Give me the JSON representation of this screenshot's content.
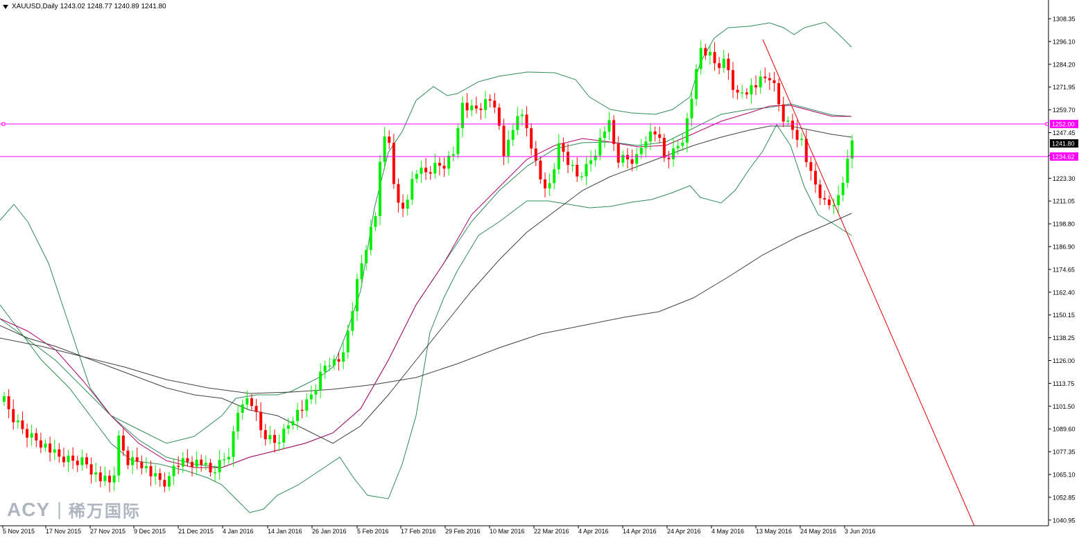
{
  "header": {
    "symbol": "XAUUSD,Daily",
    "ohlc": "1243.02 1248.77 1240.89 1241.80"
  },
  "watermark": {
    "brand": "ACY",
    "separator": "|",
    "chinese": "稀万国际"
  },
  "price_axis": {
    "labels": [
      "1308.35",
      "1296.10",
      "1284.20",
      "1271.95",
      "1259.70",
      "1247.45",
      "1235.20",
      "1223.30",
      "1211.05",
      "1198.80",
      "1186.90",
      "1174.65",
      "1162.40",
      "1150.15",
      "1138.25",
      "1126.00",
      "1113.75",
      "1101.50",
      "1089.60",
      "1077.35",
      "1065.10",
      "1052.85",
      "1040.95"
    ],
    "current_price": "1241.80",
    "hline_upper_label": "1252.00",
    "hline_lower_label": "1234.62"
  },
  "time_axis": {
    "labels": [
      "5 Nov 2015",
      "17 Nov 2015",
      "27 Nov 2015",
      "9 Dec 2015",
      "21 Dec 2015",
      "4 Jan 2016",
      "14 Jan 2016",
      "26 Jan 2016",
      "5 Feb 2016",
      "17 Feb 2016",
      "29 Feb 2016",
      "10 Mar 2016",
      "22 Mar 2016",
      "4 Apr 2016",
      "14 Apr 2016",
      "24 Apr 2016",
      "4 May 2016",
      "13 May 2016",
      "24 May 2016",
      "3 Jun 2016"
    ]
  },
  "colors": {
    "bull": "#00ee00",
    "bear": "#ff0000",
    "bollinger": "#2e8b57",
    "ma_fast": "#b0006b",
    "ma_slow": "#404040",
    "hline": "#ff00ff",
    "trendline": "#dd0000",
    "axis": "#000000",
    "current_price_bg": "#000000"
  }
}
